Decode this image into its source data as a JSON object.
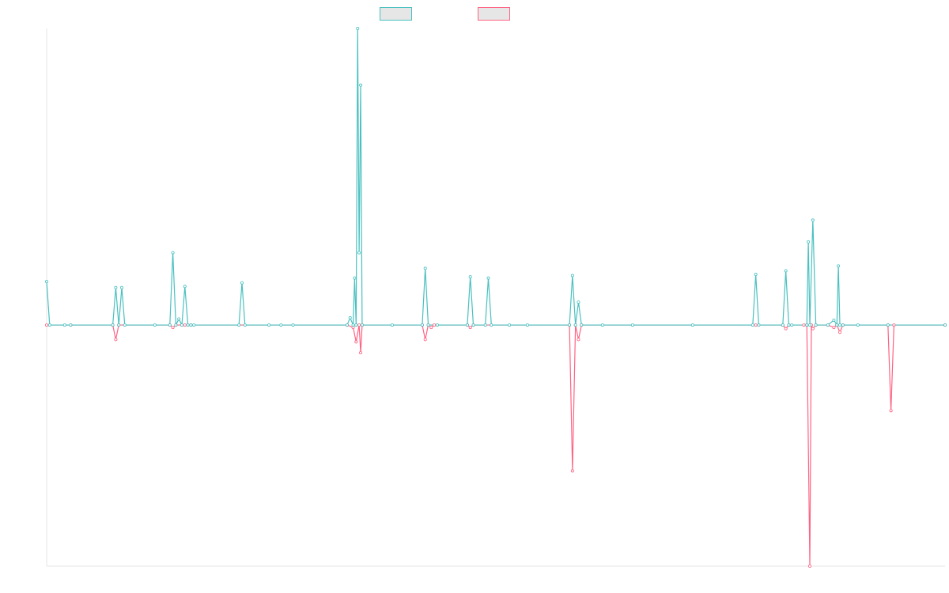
{
  "chart_data": {
    "type": "line",
    "title": "",
    "xlabel": "",
    "ylabel": "",
    "x_count": 300,
    "ylim": [
      -100,
      123
    ],
    "grid": false,
    "legend_position": "top-center",
    "series": [
      {
        "name": "",
        "color": "#4bc0c0",
        "fill": "#e6e6e6",
        "points": [
          [
            0,
            18
          ],
          [
            1,
            0
          ],
          [
            6,
            0
          ],
          [
            8,
            0
          ],
          [
            22,
            0
          ],
          [
            23,
            15.5
          ],
          [
            24,
            0
          ],
          [
            25,
            15.5
          ],
          [
            26,
            0
          ],
          [
            36,
            0
          ],
          [
            41,
            0
          ],
          [
            42,
            30
          ],
          [
            43,
            0
          ],
          [
            44,
            2.5
          ],
          [
            45,
            0
          ],
          [
            46,
            16
          ],
          [
            47,
            0
          ],
          [
            48,
            0
          ],
          [
            49,
            0
          ],
          [
            64,
            0
          ],
          [
            65,
            17.5
          ],
          [
            66,
            0
          ],
          [
            74,
            0
          ],
          [
            78,
            0
          ],
          [
            82,
            0
          ],
          [
            100,
            0
          ],
          [
            101,
            3
          ],
          [
            102,
            0
          ],
          [
            102.5,
            19.5
          ],
          [
            103,
            0
          ],
          [
            103.5,
            123
          ],
          [
            104,
            30
          ],
          [
            104.5,
            99.5
          ],
          [
            105,
            0
          ],
          [
            115,
            0
          ],
          [
            125,
            0
          ],
          [
            126,
            23.5
          ],
          [
            127,
            0
          ],
          [
            130,
            0
          ],
          [
            140,
            0
          ],
          [
            141,
            20
          ],
          [
            142,
            0
          ],
          [
            146,
            0
          ],
          [
            147,
            19.5
          ],
          [
            148,
            0
          ],
          [
            154,
            0
          ],
          [
            160,
            0
          ],
          [
            174,
            0
          ],
          [
            175,
            20.5
          ],
          [
            176,
            0
          ],
          [
            177,
            9.5
          ],
          [
            178,
            0
          ],
          [
            185,
            0
          ],
          [
            195,
            0
          ],
          [
            215,
            0
          ],
          [
            235,
            0
          ],
          [
            236,
            21
          ],
          [
            237,
            0
          ],
          [
            245,
            0
          ],
          [
            246,
            22.5
          ],
          [
            247,
            0
          ],
          [
            248,
            0
          ],
          [
            253,
            0
          ],
          [
            253.5,
            34.5
          ],
          [
            254,
            0
          ],
          [
            255,
            43.5
          ],
          [
            256,
            0
          ],
          [
            260,
            0
          ],
          [
            262,
            2
          ],
          [
            263,
            0
          ],
          [
            263.5,
            24.5
          ],
          [
            264,
            0
          ],
          [
            265,
            0
          ],
          [
            270,
            0
          ],
          [
            280,
            0
          ],
          [
            299,
            0
          ]
        ]
      },
      {
        "name": "",
        "color": "#ff6384",
        "fill": "#e6e6e6",
        "points": [
          [
            0,
            0
          ],
          [
            8,
            0
          ],
          [
            22,
            0
          ],
          [
            23,
            -6
          ],
          [
            24,
            0
          ],
          [
            41,
            0
          ],
          [
            42,
            -1
          ],
          [
            43,
            0
          ],
          [
            46,
            0
          ],
          [
            48,
            0
          ],
          [
            100,
            0
          ],
          [
            102,
            -1
          ],
          [
            103,
            -7
          ],
          [
            104,
            0
          ],
          [
            104.5,
            -11.5
          ],
          [
            105,
            0
          ],
          [
            125,
            0
          ],
          [
            126,
            -6
          ],
          [
            127,
            0
          ],
          [
            128,
            -1
          ],
          [
            129,
            0
          ],
          [
            140,
            0
          ],
          [
            141,
            -1
          ],
          [
            142,
            0
          ],
          [
            174,
            0
          ],
          [
            175,
            -60.5
          ],
          [
            176,
            0
          ],
          [
            177,
            -6
          ],
          [
            178,
            0
          ],
          [
            236,
            0
          ],
          [
            245,
            0
          ],
          [
            246,
            -1.5
          ],
          [
            247,
            0
          ],
          [
            252,
            0
          ],
          [
            253,
            0
          ],
          [
            254,
            -100
          ],
          [
            254.5,
            0
          ],
          [
            255,
            -1.5
          ],
          [
            256,
            0
          ],
          [
            260,
            0
          ],
          [
            262,
            -1
          ],
          [
            263,
            0
          ],
          [
            264,
            -3
          ],
          [
            265,
            0
          ],
          [
            280,
            0
          ],
          [
            281,
            -35.5
          ],
          [
            282,
            0
          ],
          [
            299,
            0
          ]
        ]
      }
    ]
  }
}
